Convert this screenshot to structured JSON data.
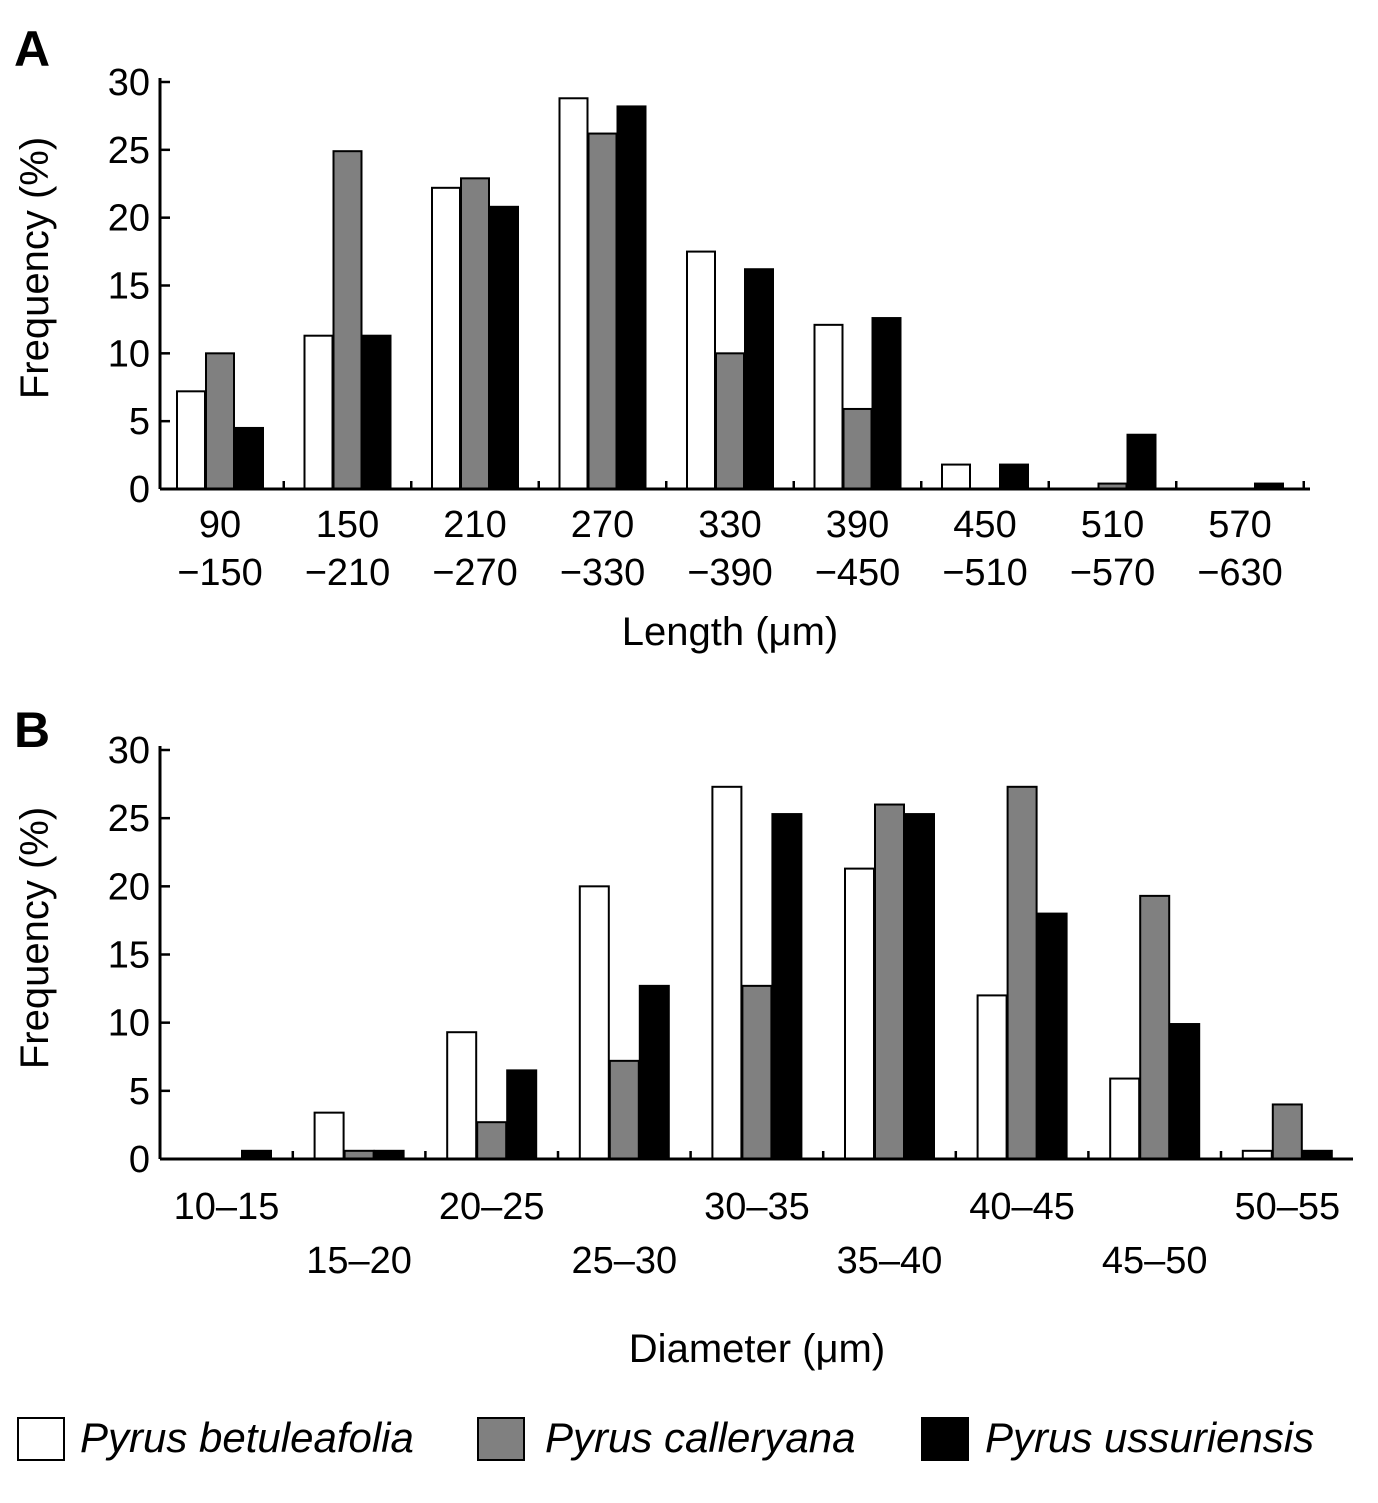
{
  "legend": [
    {
      "name": "Pyrus betuleafolia",
      "color": "#ffffff"
    },
    {
      "name": "Pyrus calleryana",
      "color": "#808080"
    },
    {
      "name": "Pyrus ussuriensis",
      "color": "#000000"
    }
  ],
  "chart_data": [
    {
      "type": "bar",
      "panel": "A",
      "ylabel": "Frequency (%)",
      "xlabel": "Length (μm)",
      "ylim": [
        0,
        30
      ],
      "yticks": [
        0,
        5,
        10,
        15,
        20,
        25,
        30
      ],
      "categories": [
        "90-150",
        "150-210",
        "210-270",
        "270-330",
        "330-390",
        "390-450",
        "450-510",
        "510-570",
        "570-630"
      ],
      "category_labels": [
        [
          "90",
          "−150"
        ],
        [
          "150",
          "−210"
        ],
        [
          "210",
          "−270"
        ],
        [
          "270",
          "−330"
        ],
        [
          "330",
          "−390"
        ],
        [
          "390",
          "−450"
        ],
        [
          "450",
          "−510"
        ],
        [
          "510",
          "−570"
        ],
        [
          "570",
          "−630"
        ]
      ],
      "series": [
        {
          "name": "Pyrus betuleafolia",
          "values": [
            7.2,
            11.3,
            22.2,
            28.8,
            17.5,
            12.1,
            1.8,
            0,
            0
          ]
        },
        {
          "name": "Pyrus calleryana",
          "values": [
            10.0,
            24.9,
            22.9,
            26.2,
            10.0,
            5.9,
            0,
            0.4,
            0
          ]
        },
        {
          "name": "Pyrus ussuriensis",
          "values": [
            4.5,
            11.3,
            20.8,
            28.2,
            16.2,
            12.6,
            1.8,
            4.0,
            0.4
          ]
        }
      ]
    },
    {
      "type": "bar",
      "panel": "B",
      "ylabel": "Frequency (%)",
      "xlabel": "Diameter (μm)",
      "ylim": [
        0,
        30
      ],
      "yticks": [
        0,
        5,
        10,
        15,
        20,
        25,
        30
      ],
      "categories": [
        "10–15",
        "15–20",
        "20–25",
        "25–30",
        "30–35",
        "35–40",
        "40–45",
        "45–50",
        "50–55"
      ],
      "series": [
        {
          "name": "Pyrus betuleafolia",
          "values": [
            0,
            3.4,
            9.3,
            20.0,
            27.3,
            21.3,
            12.0,
            5.9,
            0.6
          ]
        },
        {
          "name": "Pyrus calleryana",
          "values": [
            0,
            0.6,
            2.7,
            7.2,
            12.7,
            26.0,
            27.3,
            19.3,
            4.0
          ]
        },
        {
          "name": "Pyrus ussuriensis",
          "values": [
            0.6,
            0.6,
            6.5,
            12.7,
            25.3,
            25.3,
            18.0,
            9.9,
            0.6
          ]
        }
      ]
    }
  ]
}
